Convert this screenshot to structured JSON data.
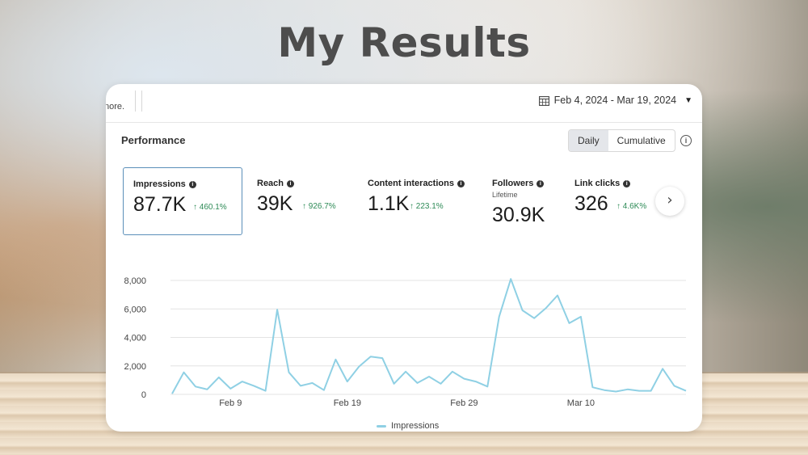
{
  "page": {
    "title": "My Results"
  },
  "header": {
    "truncated_text": "nore.",
    "date_range": "Feb 4, 2024 - Mar 19, 2024"
  },
  "performance": {
    "label": "Performance",
    "toggle": {
      "daily": "Daily",
      "cumulative": "Cumulative",
      "selected": "Daily"
    }
  },
  "metrics": [
    {
      "label": "Impressions",
      "value": "87.7K",
      "change": "↑ 460.1%",
      "selected": true
    },
    {
      "label": "Reach",
      "value": "39K",
      "change": "↑ 926.7%"
    },
    {
      "label": "Content interactions",
      "value": "1.1K",
      "change": "↑ 223.1%"
    },
    {
      "label": "Followers",
      "sublabel": "Lifetime",
      "value": "30.9K"
    },
    {
      "label": "Link clicks",
      "value": "326",
      "change": "↑ 4.6K%"
    }
  ],
  "colors": {
    "line": "#8fd0e4",
    "grid": "#e3e3e3",
    "positive": "#2e8b57",
    "selected_border": "#5b8fb9"
  },
  "chart_data": {
    "type": "line",
    "title": "",
    "xlabel": "",
    "ylabel": "",
    "ylim": [
      0,
      8000
    ],
    "yticks": [
      0,
      2000,
      4000,
      6000,
      8000
    ],
    "ytick_labels": [
      "0",
      "2,000",
      "4,000",
      "6,000",
      "8,000"
    ],
    "xtick_labels": [
      {
        "label": "Feb 9",
        "day_index": 5
      },
      {
        "label": "Feb 19",
        "day_index": 15
      },
      {
        "label": "Feb 29",
        "day_index": 25
      },
      {
        "label": "Mar 10",
        "day_index": 35
      }
    ],
    "series": [
      {
        "name": "Impressions",
        "start": "Feb 4, 2024",
        "values": [
          50,
          1550,
          550,
          350,
          1200,
          400,
          900,
          600,
          250,
          5950,
          1550,
          600,
          800,
          300,
          2450,
          900,
          1950,
          2650,
          2550,
          750,
          1600,
          800,
          1250,
          750,
          1600,
          1100,
          900,
          550,
          5450,
          8100,
          5900,
          5350,
          6050,
          6950,
          5000,
          5450,
          500,
          300,
          200,
          350,
          250,
          250,
          1800,
          600,
          250
        ]
      }
    ],
    "legend": {
      "position": "bottom-center",
      "entries": [
        "Impressions"
      ]
    },
    "grid": true
  }
}
